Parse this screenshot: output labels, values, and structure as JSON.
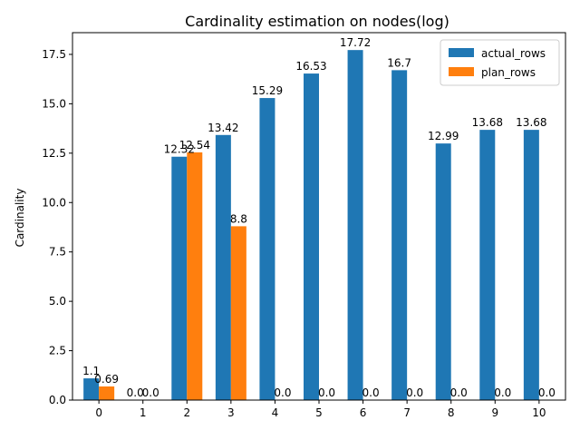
{
  "chart_data": {
    "type": "bar",
    "title": "Cardinality estimation on nodes(log)",
    "xlabel": "",
    "ylabel": "Cardinality",
    "categories": [
      "0",
      "1",
      "2",
      "3",
      "4",
      "5",
      "6",
      "7",
      "8",
      "9",
      "10"
    ],
    "series": [
      {
        "name": "actual_rows",
        "color": "#1f77b4",
        "values": [
          1.1,
          0.0,
          12.32,
          13.42,
          15.29,
          16.53,
          17.72,
          16.7,
          12.99,
          13.68,
          13.68
        ],
        "labels": [
          "1.1",
          "0.0",
          "12.32",
          "13.42",
          "15.29",
          "16.53",
          "17.72",
          "16.7",
          "12.99",
          "13.68",
          "13.68"
        ]
      },
      {
        "name": "plan_rows",
        "color": "#ff7f0e",
        "values": [
          0.69,
          0.0,
          12.54,
          8.8,
          0.0,
          0.0,
          0.0,
          0.0,
          0.0,
          0.0,
          0.0
        ],
        "labels": [
          "0.69",
          "0.0",
          "12.54",
          "8.8",
          "0.0",
          "0.0",
          "0.0",
          "0.0",
          "0.0",
          "0.0",
          "0.0"
        ]
      }
    ],
    "yticks": [
      "0.0",
      "2.5",
      "5.0",
      "7.5",
      "10.0",
      "12.5",
      "15.0",
      "17.5"
    ],
    "ytick_values": [
      0,
      2.5,
      5,
      7.5,
      10,
      12.5,
      15,
      17.5
    ],
    "ylim": [
      0,
      18.6
    ],
    "grid": false,
    "legend_position": "top-right"
  }
}
